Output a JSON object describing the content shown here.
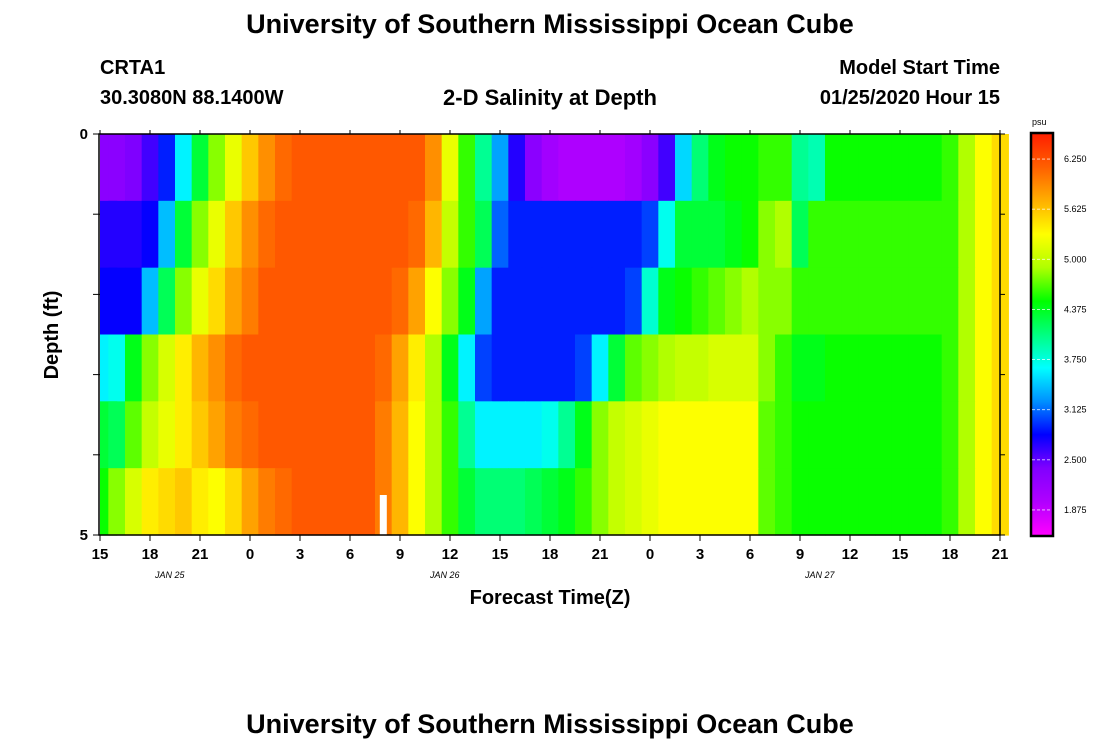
{
  "header": {
    "title": "University of Southern Mississippi Ocean Cube",
    "station": "CRTA1",
    "location": "30.3080N 88.1400W",
    "plot_title": "2-D Salinity at Depth",
    "model_label": "Model Start Time",
    "model_time": "01/25/2020 Hour 15"
  },
  "footer": {
    "title": "University of Southern Mississippi Ocean Cube"
  },
  "colorbar": {
    "unit": "psu",
    "ticks": [
      "6.250",
      "5.625",
      "5.000",
      "4.375",
      "3.750",
      "3.125",
      "2.500",
      "1.875"
    ],
    "range": [
      1.5625,
      6.5625
    ],
    "stops": [
      "#ff00ff",
      "#b000ff",
      "#8000ff",
      "#0000ff",
      "#0090ff",
      "#00ffff",
      "#00ff80",
      "#00ff00",
      "#b0ff00",
      "#ffff00",
      "#ffb000",
      "#ff6000",
      "#ff2000"
    ]
  },
  "chart_data": {
    "type": "heatmap",
    "title": "2-D Salinity at Depth",
    "xlabel": "Forecast Time(Z)",
    "ylabel": "Depth (ft)",
    "x_tick_labels": [
      "15",
      "18",
      "21",
      "0",
      "3",
      "6",
      "9",
      "12",
      "15",
      "18",
      "21",
      "0",
      "3",
      "6",
      "9",
      "12",
      "15",
      "18",
      "21"
    ],
    "date_labels": [
      "JAN 25",
      "JAN 26",
      "JAN 27"
    ],
    "y_tick_labels": [
      "0",
      "5"
    ],
    "ylim": [
      0,
      5
    ],
    "units": "psu",
    "x_hours": [
      15,
      16,
      17,
      18,
      19,
      20,
      21,
      22,
      23,
      24,
      25,
      26,
      27,
      28,
      29,
      30,
      31,
      32,
      33,
      34,
      35,
      36,
      37,
      38,
      39,
      40,
      41,
      42,
      43,
      44,
      45,
      46,
      47,
      48,
      49,
      50,
      51,
      52,
      53,
      54,
      55,
      56,
      57,
      58,
      59,
      60,
      61,
      62,
      63,
      64,
      65,
      66,
      67,
      68,
      69
    ],
    "depth_rows": [
      "0-1",
      "1-2",
      "2-3",
      "3-4",
      "4-5"
    ],
    "values": [
      [
        2.3,
        2.3,
        2.4,
        2.6,
        2.9,
        3.6,
        4.3,
        4.8,
        5.2,
        5.6,
        5.9,
        6.1,
        6.2,
        6.2,
        6.2,
        6.2,
        6.2,
        6.2,
        6.2,
        6.2,
        5.9,
        5.2,
        4.6,
        4.0,
        3.3,
        2.7,
        2.3,
        2.1,
        2.0,
        2.0,
        2.0,
        2.0,
        2.1,
        2.3,
        2.6,
        3.5,
        4.1,
        4.4,
        4.5,
        4.5,
        4.6,
        4.6,
        4.0,
        3.9,
        4.5,
        4.5,
        4.5,
        4.5,
        4.5,
        4.5,
        4.5,
        4.6,
        4.9,
        5.3,
        5.5
      ],
      [
        2.7,
        2.7,
        2.7,
        2.8,
        3.4,
        4.3,
        4.8,
        5.2,
        5.6,
        5.9,
        6.1,
        6.2,
        6.2,
        6.2,
        6.2,
        6.2,
        6.2,
        6.2,
        6.2,
        6.1,
        5.7,
        5.0,
        4.6,
        4.2,
        3.1,
        2.9,
        2.9,
        2.9,
        2.9,
        2.9,
        2.9,
        2.9,
        2.9,
        3.0,
        3.7,
        4.3,
        4.3,
        4.3,
        4.4,
        4.5,
        4.8,
        4.9,
        4.2,
        4.6,
        4.6,
        4.6,
        4.6,
        4.6,
        4.6,
        4.6,
        4.6,
        4.6,
        4.9,
        5.3,
        5.5
      ],
      [
        2.8,
        2.8,
        2.8,
        3.4,
        4.2,
        4.8,
        5.2,
        5.5,
        5.8,
        6.0,
        6.2,
        6.2,
        6.2,
        6.2,
        6.2,
        6.2,
        6.2,
        6.2,
        6.1,
        5.8,
        5.3,
        4.8,
        4.4,
        3.3,
        2.9,
        2.9,
        2.9,
        2.9,
        2.9,
        2.9,
        2.9,
        2.9,
        3.0,
        3.8,
        4.4,
        4.5,
        4.6,
        4.7,
        4.8,
        4.9,
        4.8,
        4.8,
        4.6,
        4.6,
        4.6,
        4.6,
        4.6,
        4.6,
        4.6,
        4.6,
        4.6,
        4.6,
        4.9,
        5.3,
        5.5
      ],
      [
        3.6,
        3.7,
        4.4,
        4.8,
        5.1,
        5.4,
        5.7,
        5.9,
        6.1,
        6.2,
        6.2,
        6.2,
        6.2,
        6.2,
        6.2,
        6.2,
        6.2,
        6.1,
        5.8,
        5.4,
        4.9,
        4.4,
        3.6,
        3.0,
        2.9,
        2.9,
        2.9,
        2.9,
        2.9,
        3.0,
        3.6,
        4.3,
        4.7,
        4.8,
        4.9,
        5.0,
        5.0,
        5.1,
        5.1,
        5.1,
        4.8,
        4.6,
        4.4,
        4.4,
        4.5,
        4.5,
        4.5,
        4.5,
        4.5,
        4.5,
        4.5,
        4.6,
        4.9,
        5.3,
        5.5
      ],
      [
        4.3,
        4.2,
        4.7,
        5.0,
        5.2,
        5.4,
        5.6,
        5.8,
        6.0,
        6.1,
        6.2,
        6.2,
        6.2,
        6.2,
        6.2,
        6.2,
        6.2,
        6.0,
        5.7,
        5.3,
        4.9,
        4.6,
        4.0,
        3.6,
        3.6,
        3.6,
        3.6,
        3.7,
        4.0,
        4.4,
        4.8,
        5.0,
        5.1,
        5.2,
        5.3,
        5.3,
        5.3,
        5.3,
        5.3,
        5.3,
        4.7,
        4.6,
        4.5,
        4.5,
        4.5,
        4.5,
        4.5,
        4.5,
        4.5,
        4.5,
        4.5,
        4.6,
        4.9,
        5.3,
        5.5
      ]
    ],
    "bottom_row_values": [
      4.5,
      4.8,
      5.1,
      5.4,
      5.5,
      5.6,
      5.4,
      5.3,
      5.5,
      5.8,
      6.0,
      6.1,
      6.2,
      6.2,
      6.2,
      6.2,
      6.2,
      6.0,
      5.7,
      5.3,
      4.9,
      4.6,
      4.3,
      4.1,
      4.1,
      4.1,
      4.2,
      4.3,
      4.4,
      4.6,
      4.8,
      5.0,
      5.1,
      5.2,
      5.3,
      5.3,
      5.3,
      5.3,
      5.3,
      5.3,
      4.7,
      4.6,
      4.5,
      4.5,
      4.5,
      4.5,
      4.5,
      4.5,
      4.5,
      4.5,
      4.5,
      4.6,
      4.9,
      5.3,
      5.5
    ],
    "current_time_marker_hour": 32
  }
}
